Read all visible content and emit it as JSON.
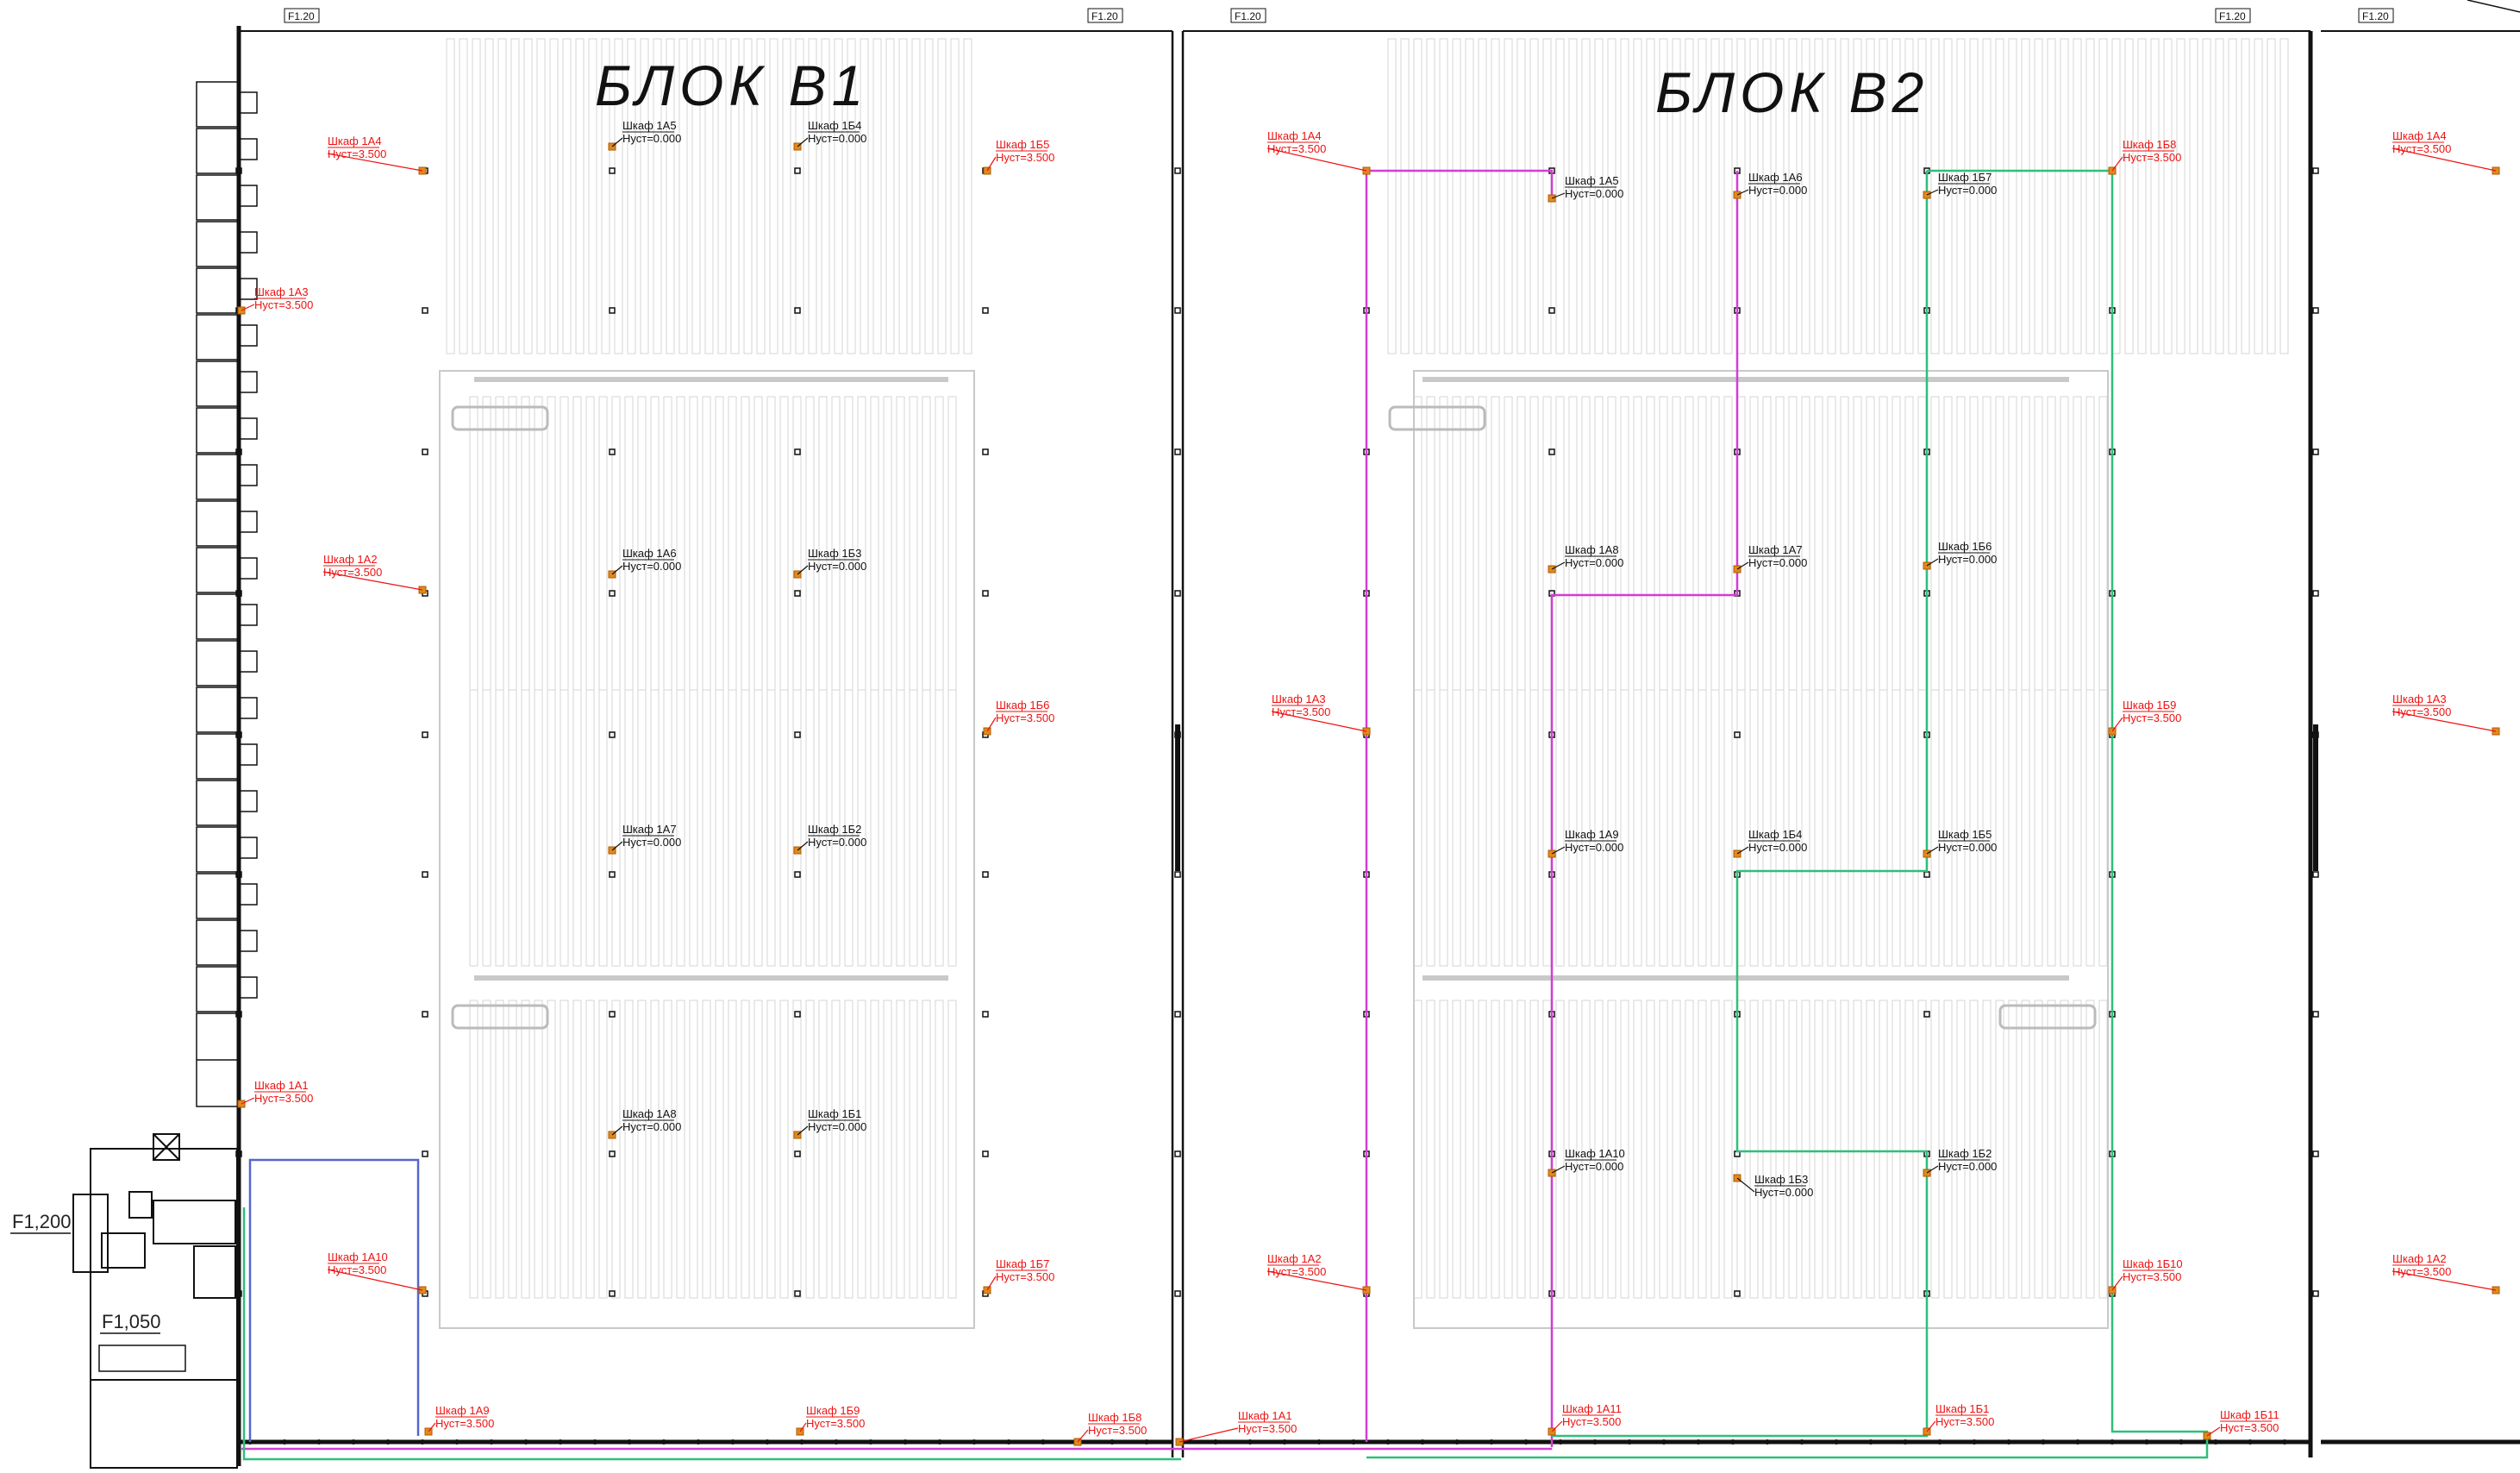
{
  "blocks": [
    {
      "id": "b1",
      "title": "БЛОК В1"
    },
    {
      "id": "b2",
      "title": "БЛОК В2"
    }
  ],
  "levels": [
    "F1,200",
    "F1,050"
  ],
  "axis_tag": "F1.20",
  "colors": {
    "wall": "#111111",
    "label_red": "#ee1111",
    "cabinet": "#e08a1e",
    "route_magenta": "#d43cd4",
    "route_green": "#2fbf7a",
    "route_blue": "#5566cc",
    "rack": "#c9c9c9"
  },
  "cabinets_wall": [
    {
      "name": "Шкаф 1А4",
      "h": "Hуст=3.500"
    },
    {
      "name": "Шкаф 1А3",
      "h": "Hуст=3.500"
    },
    {
      "name": "Шкаф 1А2",
      "h": "Hуст=3.500"
    },
    {
      "name": "Шкаф 1А1",
      "h": "Hуст=3.500"
    },
    {
      "name": "Шкаф 1А10",
      "h": "Hуст=3.500"
    },
    {
      "name": "Шкаф 1Б5",
      "h": "Hуст=3.500"
    },
    {
      "name": "Шкаф 1Б6",
      "h": "Hуст=3.500"
    },
    {
      "name": "Шкаф 1Б7",
      "h": "Hуст=3.500"
    },
    {
      "name": "Шкаф 1А9",
      "h": "Hуст=3.500"
    },
    {
      "name": "Шкаф 1Б9",
      "h": "Hуст=3.500"
    },
    {
      "name": "Шкаф 1Б8",
      "h": "Hуст=3.500"
    },
    {
      "name": "Шкаф 1А4",
      "h": "Hуст=3.500"
    },
    {
      "name": "Шкаф 1А3",
      "h": "Hуст=3.500"
    },
    {
      "name": "Шкаф 1А2",
      "h": "Hуст=3.500"
    },
    {
      "name": "Шкаф 1А1",
      "h": "Hуст=3.500"
    },
    {
      "name": "Шкаф 1Б8",
      "h": "Hуст=3.500"
    },
    {
      "name": "Шкаф 1Б9",
      "h": "Hуст=3.500"
    },
    {
      "name": "Шкаф 1Б10",
      "h": "Hуст=3.500"
    },
    {
      "name": "Шкаф 1А11",
      "h": "Hуст=3.500"
    },
    {
      "name": "Шкаф 1Б1",
      "h": "Hуст=3.500"
    },
    {
      "name": "Шкаф 1Б11",
      "h": "Hуст=3.500"
    },
    {
      "name": "Шкаф 1А4",
      "h": "Hуст=3.500"
    },
    {
      "name": "Шкаф 1А3",
      "h": "Hуст=3.500"
    },
    {
      "name": "Шкаф 1А2",
      "h": "Hуст=3.500"
    }
  ],
  "cabinets_floor": [
    {
      "name": "Шкаф 1А5",
      "h": "Hуст=0.000"
    },
    {
      "name": "Шкаф 1Б4",
      "h": "Hуст=0.000"
    },
    {
      "name": "Шкаф 1А6",
      "h": "Hуст=0.000"
    },
    {
      "name": "Шкаф 1Б3",
      "h": "Hуст=0.000"
    },
    {
      "name": "Шкаф 1А7",
      "h": "Hуст=0.000"
    },
    {
      "name": "Шкаф 1Б2",
      "h": "Hуст=0.000"
    },
    {
      "name": "Шкаф 1А8",
      "h": "Hуст=0.000"
    },
    {
      "name": "Шкаф 1Б1",
      "h": "Hуст=0.000"
    },
    {
      "name": "Шкаф 1А5",
      "h": "Hуст=0.000"
    },
    {
      "name": "Шкаф 1А6",
      "h": "Hуст=0.000"
    },
    {
      "name": "Шкаф 1Б7",
      "h": "Hуст=0.000"
    },
    {
      "name": "Шкаф 1А8",
      "h": "Hуст=0.000"
    },
    {
      "name": "Шкаф 1А7",
      "h": "Hуст=0.000"
    },
    {
      "name": "Шкаф 1Б6",
      "h": "Hуст=0.000"
    },
    {
      "name": "Шкаф 1А9",
      "h": "Hуст=0.000"
    },
    {
      "name": "Шкаф 1Б4",
      "h": "Hуст=0.000"
    },
    {
      "name": "Шкаф 1Б5",
      "h": "Hуст=0.000"
    },
    {
      "name": "Шкаф 1А10",
      "h": "Hуст=0.000"
    },
    {
      "name": "Шкаф 1Б3",
      "h": "Hуст=0.000"
    },
    {
      "name": "Шкаф 1Б2",
      "h": "Hуст=0.000"
    }
  ]
}
